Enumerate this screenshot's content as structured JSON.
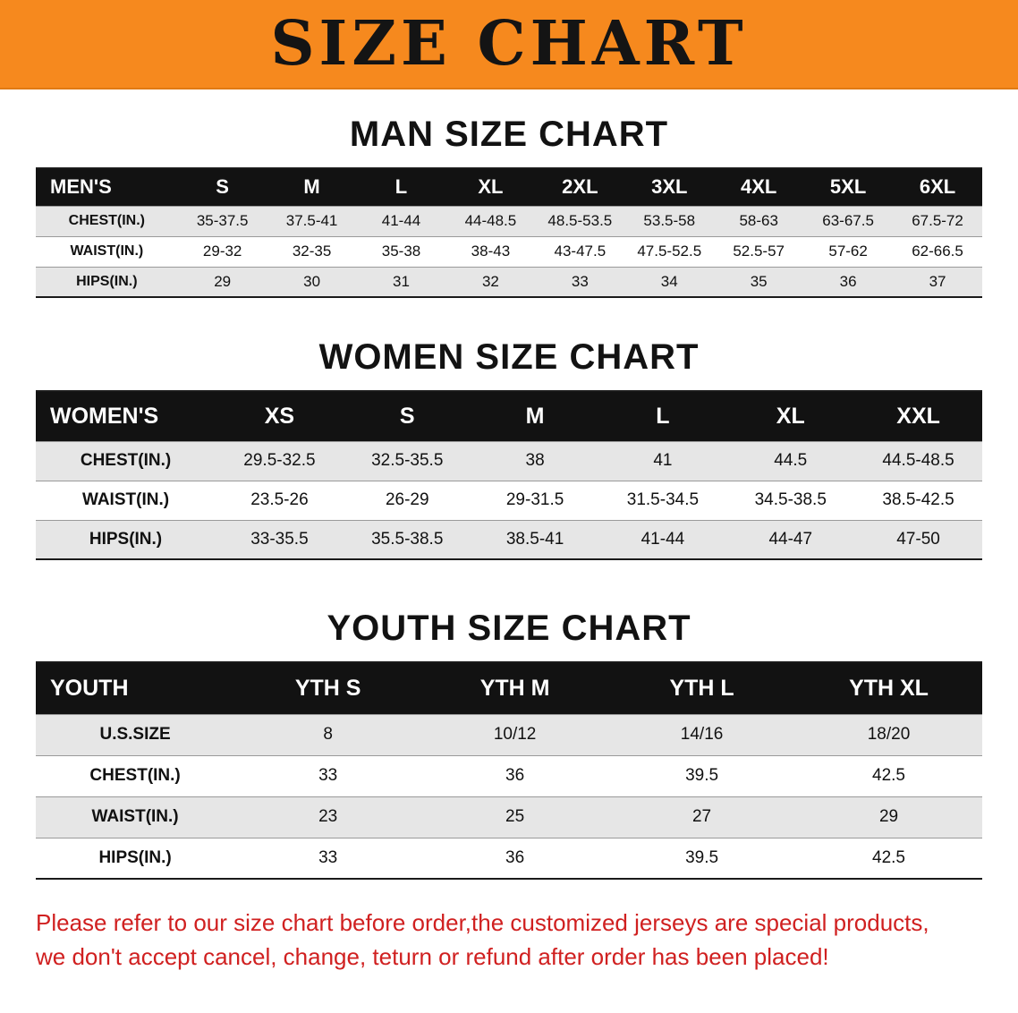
{
  "banner": {
    "title": "SIZE CHART",
    "bg_color": "#F6891E",
    "text_color": "#141414"
  },
  "sections": [
    {
      "heading": "MAN SIZE CHART",
      "table": {
        "header": [
          "MEN'S",
          "S",
          "M",
          "L",
          "XL",
          "2XL",
          "3XL",
          "4XL",
          "5XL",
          "6XL"
        ],
        "rows": [
          [
            "CHEST(IN.)",
            "35-37.5",
            "37.5-41",
            "41-44",
            "44-48.5",
            "48.5-53.5",
            "53.5-58",
            "58-63",
            "63-67.5",
            "67.5-72"
          ],
          [
            "WAIST(IN.)",
            "29-32",
            "32-35",
            "35-38",
            "38-43",
            "43-47.5",
            "47.5-52.5",
            "52.5-57",
            "57-62",
            "62-66.5"
          ],
          [
            "HIPS(IN.)",
            "29",
            "30",
            "31",
            "32",
            "33",
            "34",
            "35",
            "36",
            "37"
          ]
        ]
      }
    },
    {
      "heading": "WOMEN SIZE CHART",
      "table": {
        "header": [
          "WOMEN'S",
          "XS",
          "S",
          "M",
          "L",
          "XL",
          "XXL"
        ],
        "rows": [
          [
            "CHEST(IN.)",
            "29.5-32.5",
            "32.5-35.5",
            "38",
            "41",
            "44.5",
            "44.5-48.5"
          ],
          [
            "WAIST(IN.)",
            "23.5-26",
            "26-29",
            "29-31.5",
            "31.5-34.5",
            "34.5-38.5",
            "38.5-42.5"
          ],
          [
            "HIPS(IN.)",
            "33-35.5",
            "35.5-38.5",
            "38.5-41",
            "41-44",
            "44-47",
            "47-50"
          ]
        ]
      }
    },
    {
      "heading": "YOUTH SIZE CHART",
      "table": {
        "header": [
          "YOUTH",
          "YTH S",
          "YTH M",
          "YTH L",
          "YTH XL"
        ],
        "rows": [
          [
            "U.S.SIZE",
            "8",
            "10/12",
            "14/16",
            "18/20"
          ],
          [
            "CHEST(IN.)",
            "33",
            "36",
            "39.5",
            "42.5"
          ],
          [
            "WAIST(IN.)",
            "23",
            "25",
            "27",
            "29"
          ],
          [
            "HIPS(IN.)",
            "33",
            "36",
            "39.5",
            "42.5"
          ]
        ]
      }
    }
  ],
  "note": {
    "line1": "Please refer to our size chart before order,the customized jerseys are special products,",
    "line2": "we don't accept cancel, change, teturn or refund after order has been placed!",
    "color": "#d02020"
  }
}
